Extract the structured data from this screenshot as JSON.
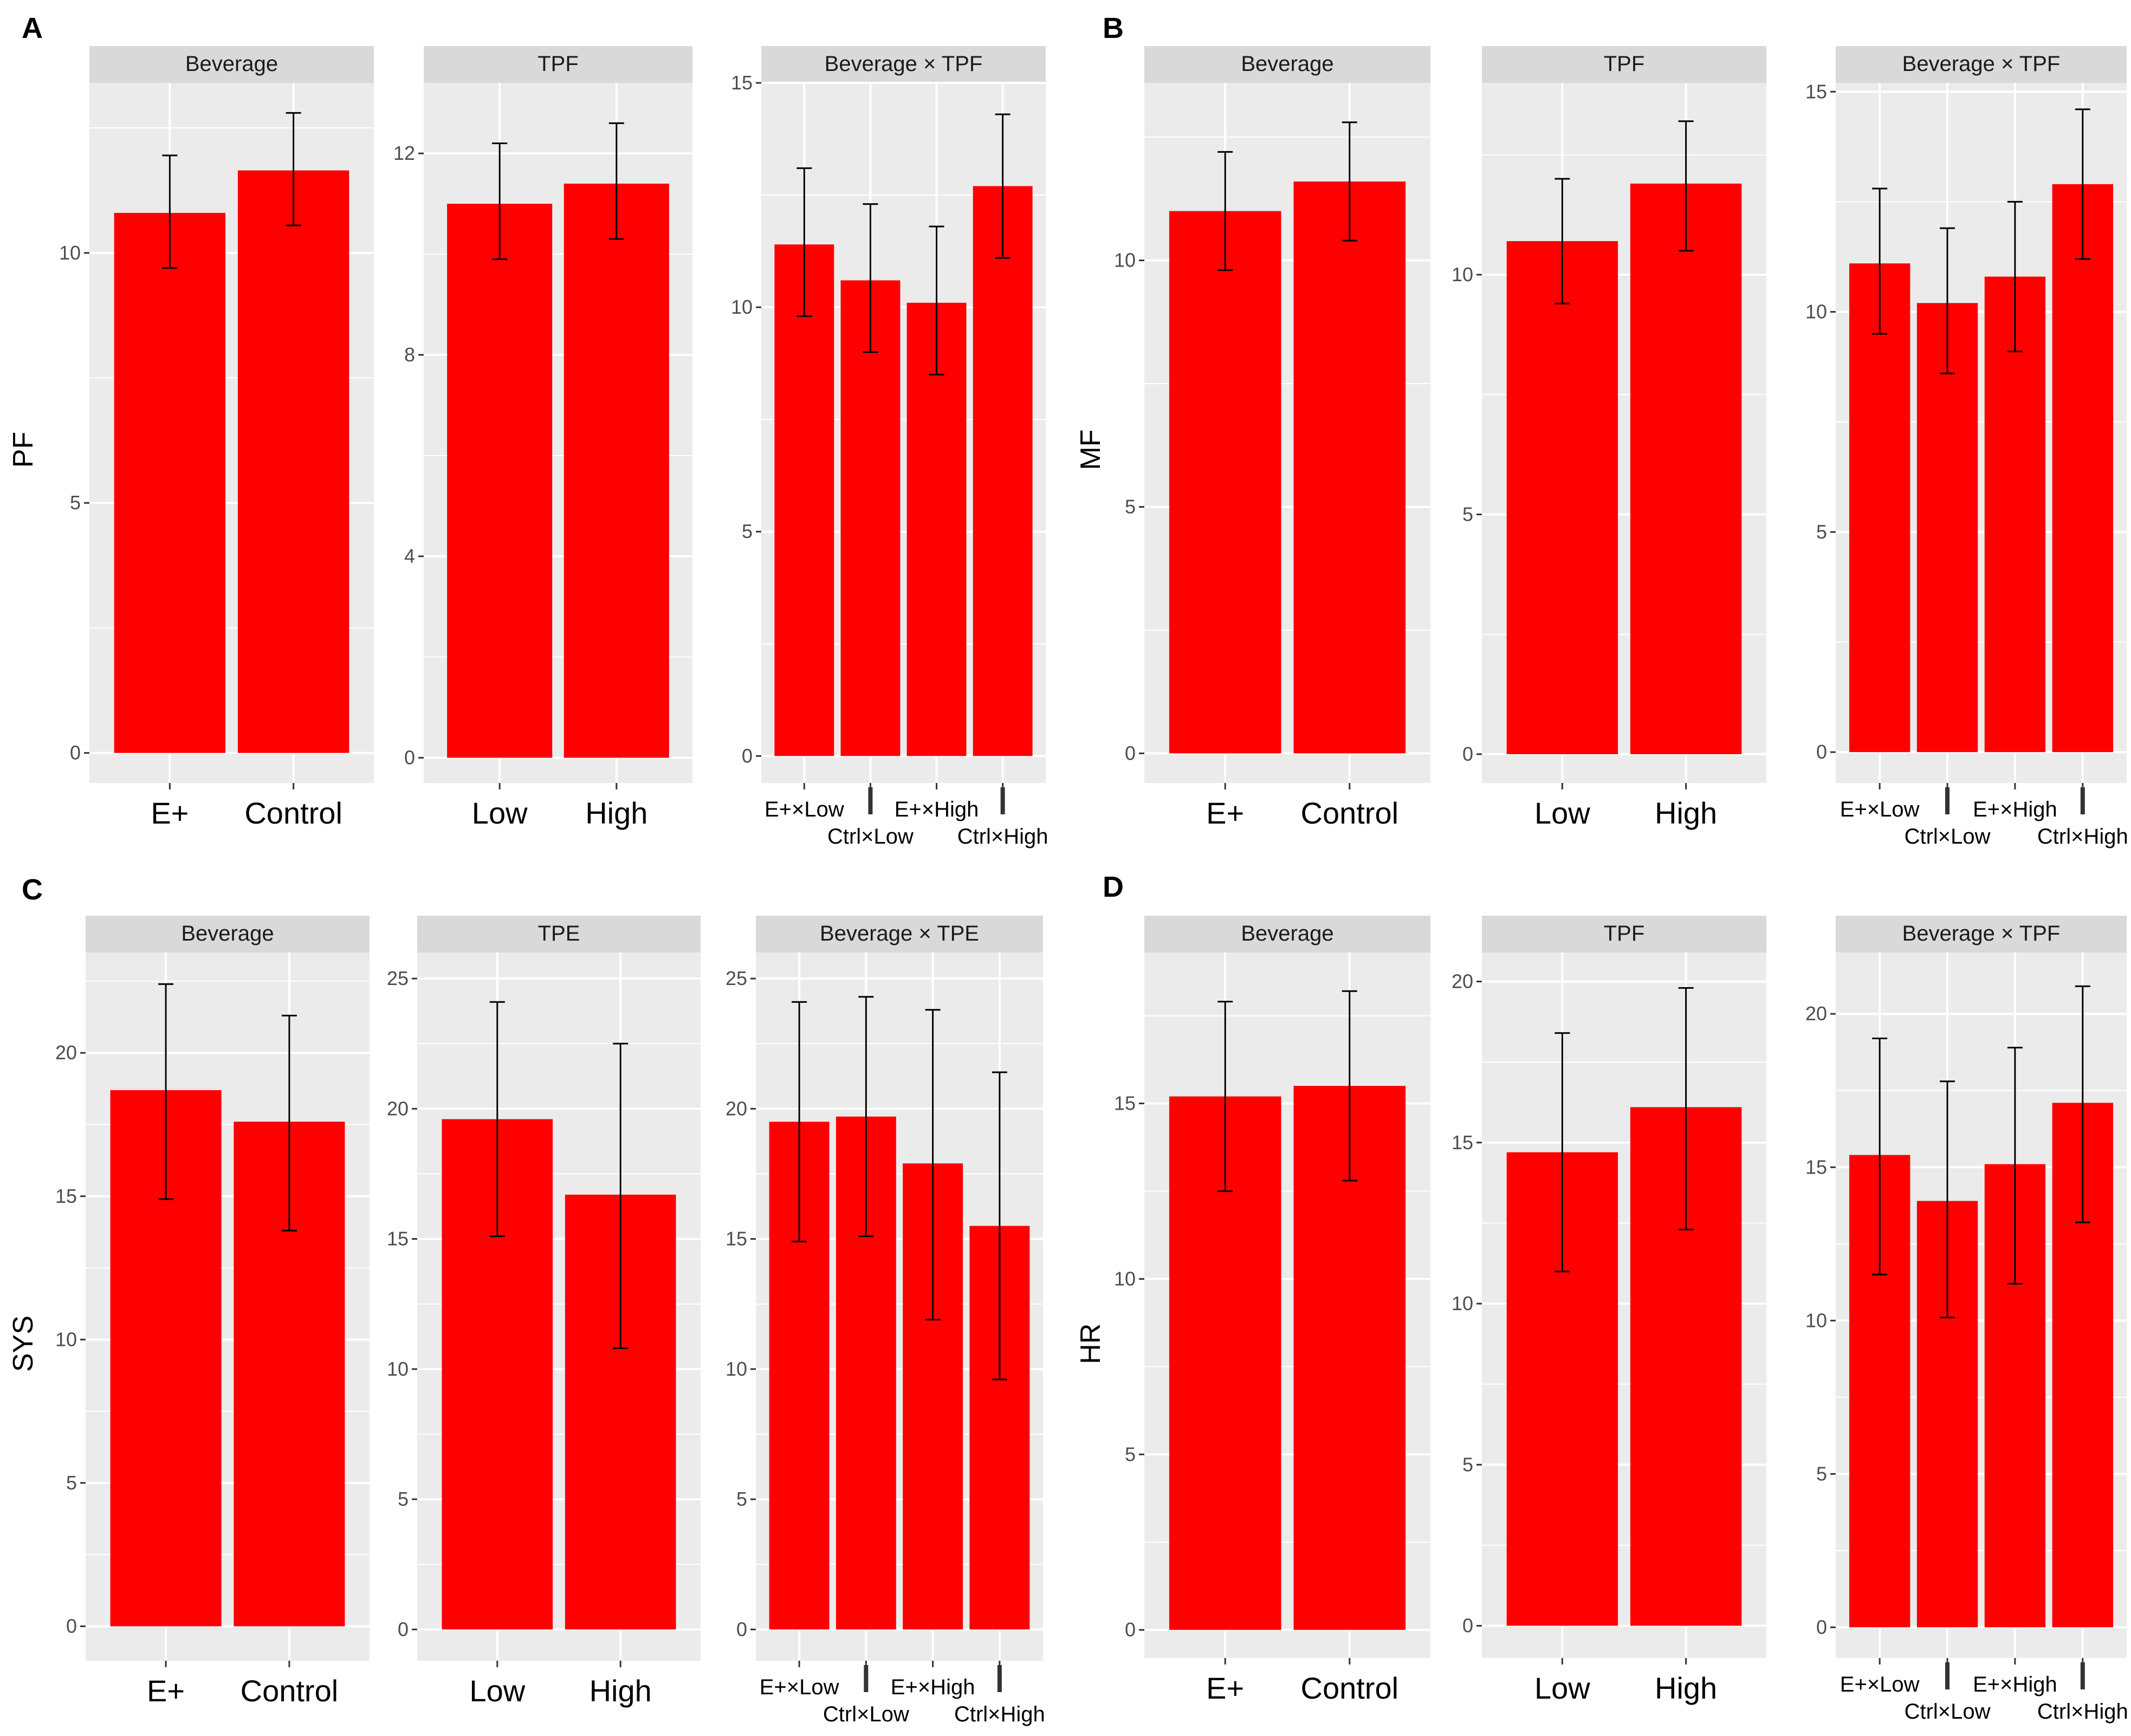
{
  "colors": {
    "bar": "#ff0000",
    "panel_bg": "#ebebeb",
    "strip_bg": "#d9d9d9",
    "grid": "#ffffff",
    "axis_text": "#4d4d4d",
    "errorbar": "#000000"
  },
  "chart_data": [
    {
      "panel": "A",
      "type": "bar",
      "ylabel": "PF",
      "facets": [
        {
          "title": "Beverage",
          "categories": [
            "E+",
            "Control"
          ],
          "values": [
            10.8,
            11.65
          ],
          "error_low": [
            9.7,
            10.55
          ],
          "error_high": [
            11.95,
            12.8
          ],
          "ylim": [
            -0.6,
            13.4
          ],
          "ticks": [
            0,
            5,
            10
          ],
          "tick_labels": [
            "0",
            "5",
            "10"
          ]
        },
        {
          "title": "TPF",
          "categories": [
            "Low",
            "High"
          ],
          "values": [
            11.0,
            11.4
          ],
          "error_low": [
            9.9,
            10.3
          ],
          "error_high": [
            12.2,
            12.6
          ],
          "ylim": [
            -0.5,
            13.4
          ],
          "ticks": [
            0,
            4,
            8,
            12
          ],
          "tick_labels": [
            "0",
            "4",
            "8",
            "12"
          ]
        },
        {
          "title": "Beverage × TPF",
          "categories": [
            "E+×Low",
            "Ctrl×Low",
            "E+×High",
            "Ctrl×High"
          ],
          "values": [
            11.4,
            10.6,
            10.1,
            12.7
          ],
          "error_low": [
            9.8,
            9.0,
            8.5,
            11.1
          ],
          "error_high": [
            13.1,
            12.3,
            11.8,
            14.3
          ],
          "ylim": [
            -0.6,
            15.0
          ],
          "ticks": [
            0,
            5,
            10,
            15
          ],
          "tick_labels": [
            "0",
            "5",
            "10",
            "15"
          ]
        }
      ]
    },
    {
      "panel": "B",
      "type": "bar",
      "ylabel": "MF",
      "facets": [
        {
          "title": "Beverage",
          "categories": [
            "E+",
            "Control"
          ],
          "values": [
            11.0,
            11.6
          ],
          "error_low": [
            9.8,
            10.4
          ],
          "error_high": [
            12.2,
            12.8
          ],
          "ylim": [
            -0.6,
            13.6
          ],
          "ticks": [
            0,
            5,
            10
          ],
          "tick_labels": [
            "0",
            "5",
            "10"
          ]
        },
        {
          "title": "TPF",
          "categories": [
            "Low",
            "High"
          ],
          "values": [
            10.7,
            11.9
          ],
          "error_low": [
            9.4,
            10.5
          ],
          "error_high": [
            12.0,
            13.2
          ],
          "ylim": [
            -0.6,
            14.0
          ],
          "ticks": [
            0,
            5,
            10
          ],
          "tick_labels": [
            "0",
            "5",
            "10"
          ]
        },
        {
          "title": "Beverage × TPF",
          "categories": [
            "E+×Low",
            "Ctrl×Low",
            "E+×High",
            "Ctrl×High"
          ],
          "values": [
            11.1,
            10.2,
            10.8,
            12.9
          ],
          "error_low": [
            9.5,
            8.6,
            9.1,
            11.2
          ],
          "error_high": [
            12.8,
            11.9,
            12.5,
            14.6
          ],
          "ylim": [
            -0.7,
            15.2
          ],
          "ticks": [
            0,
            5,
            10,
            15
          ],
          "tick_labels": [
            "0",
            "5",
            "10",
            "15"
          ]
        }
      ]
    },
    {
      "panel": "C",
      "type": "bar",
      "ylabel": "SYS",
      "facets": [
        {
          "title": "Beverage",
          "categories": [
            "E+",
            "Control"
          ],
          "values": [
            18.7,
            17.6
          ],
          "error_low": [
            14.9,
            13.8
          ],
          "error_high": [
            22.4,
            21.3
          ],
          "ylim": [
            -1.2,
            23.5
          ],
          "ticks": [
            0,
            5,
            10,
            15,
            20
          ],
          "tick_labels": [
            "0",
            "5",
            "10",
            "15",
            "20"
          ]
        },
        {
          "title": "TPE",
          "categories": [
            "Low",
            "High"
          ],
          "values": [
            19.6,
            16.7
          ],
          "error_low": [
            15.1,
            10.8
          ],
          "error_high": [
            24.1,
            22.5
          ],
          "ylim": [
            -1.2,
            26.0
          ],
          "ticks": [
            0,
            5,
            10,
            15,
            20,
            25
          ],
          "tick_labels": [
            "0",
            "5",
            "10",
            "15",
            "20",
            "25"
          ]
        },
        {
          "title": "Beverage × TPE",
          "categories": [
            "E+×Low",
            "Ctrl×Low",
            "E+×High",
            "Ctrl×High"
          ],
          "values": [
            19.5,
            19.7,
            17.9,
            15.5
          ],
          "error_low": [
            14.9,
            15.1,
            11.9,
            9.6
          ],
          "error_high": [
            24.1,
            24.3,
            23.8,
            21.4
          ],
          "ylim": [
            -1.2,
            26.0
          ],
          "ticks": [
            0,
            5,
            10,
            15,
            20,
            25
          ],
          "tick_labels": [
            "0",
            "5",
            "10",
            "15",
            "20",
            "25"
          ]
        }
      ]
    },
    {
      "panel": "D",
      "type": "bar",
      "ylabel": "HR",
      "facets": [
        {
          "title": "Beverage",
          "categories": [
            "E+",
            "Control"
          ],
          "values": [
            15.2,
            15.5
          ],
          "error_low": [
            12.5,
            12.8
          ],
          "error_high": [
            17.9,
            18.2
          ],
          "ylim": [
            -0.8,
            19.3
          ],
          "ticks": [
            0,
            5,
            10,
            15
          ],
          "tick_labels": [
            "0",
            "5",
            "10",
            "15"
          ]
        },
        {
          "title": "TPF",
          "categories": [
            "Low",
            "High"
          ],
          "values": [
            14.7,
            16.1
          ],
          "error_low": [
            11.0,
            12.3
          ],
          "error_high": [
            18.4,
            19.8
          ],
          "ylim": [
            -1.0,
            20.9
          ],
          "ticks": [
            0,
            5,
            10,
            15,
            20
          ],
          "tick_labels": [
            "0",
            "5",
            "10",
            "15",
            "20"
          ]
        },
        {
          "title": "Beverage × TPF",
          "categories": [
            "E+×Low",
            "Ctrl×Low",
            "E+×High",
            "Ctrl×High"
          ],
          "values": [
            15.4,
            13.9,
            15.1,
            17.1
          ],
          "error_low": [
            11.5,
            10.1,
            11.2,
            13.2
          ],
          "error_high": [
            19.2,
            17.8,
            18.9,
            20.9
          ],
          "ylim": [
            -1.0,
            22.0
          ],
          "ticks": [
            0,
            5,
            10,
            15,
            20
          ],
          "tick_labels": [
            "0",
            "5",
            "10",
            "15",
            "20"
          ]
        }
      ]
    }
  ]
}
